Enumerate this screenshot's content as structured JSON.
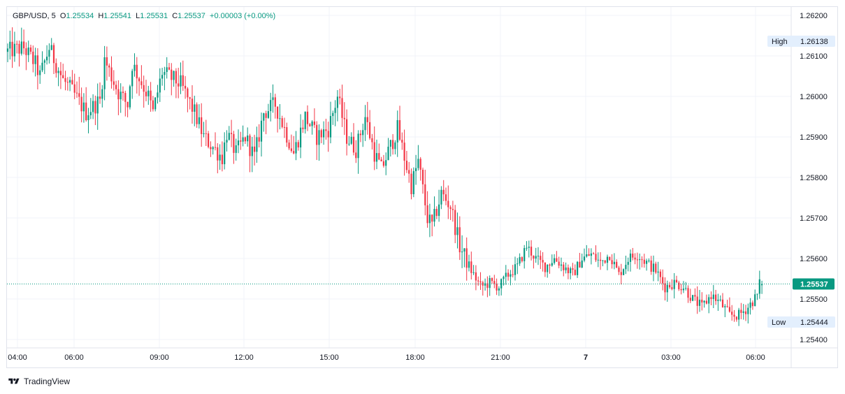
{
  "legend": {
    "symbol": "GBP/USD, 5",
    "open_label": "O",
    "open": "1.25534",
    "high_label": "H",
    "high": "1.25541",
    "low_label": "L",
    "low": "1.25531",
    "close_label": "C",
    "close": "1.25537",
    "change": "+0.00003 (+0.00%)"
  },
  "badges": {
    "high_label": "High",
    "high_value": "1.26138",
    "low_label": "Low",
    "low_value": "1.25444",
    "last_price": "1.25537"
  },
  "brand": "TradingView",
  "colors": {
    "up": "#089981",
    "down": "#f23645",
    "grid": "#f0f3fa",
    "axis_text": "#131722",
    "badge_bg": "#e3effd",
    "last_price_bg": "#089981"
  },
  "chart_data": {
    "type": "candlestick",
    "symbol": "GBP/USD",
    "timeframe": "5",
    "ylim": [
      1.2535,
      1.2623
    ],
    "y_ticks": [
      "1.26200",
      "1.26100",
      "1.26000",
      "1.25900",
      "1.25800",
      "1.25700",
      "1.25600",
      "1.25500",
      "1.25400"
    ],
    "x_ticks": [
      "04:00",
      "06:00",
      "09:00",
      "12:00",
      "15:00",
      "18:00",
      "21:00",
      "7",
      "03:00",
      "06:00"
    ],
    "session_high": 1.26138,
    "session_low": 1.25444,
    "last_price": 1.25537,
    "grid": true,
    "path_anchors": [
      [
        0,
        1.2611
      ],
      [
        8,
        1.2612
      ],
      [
        13,
        1.2608
      ],
      [
        15,
        1.2605
      ],
      [
        19,
        1.2612
      ],
      [
        25,
        1.2604
      ],
      [
        28,
        1.2602
      ],
      [
        35,
        1.2596
      ],
      [
        41,
        1.2599
      ],
      [
        43,
        1.2609
      ],
      [
        49,
        1.2601
      ],
      [
        53,
        1.2598
      ],
      [
        55,
        1.2608
      ],
      [
        62,
        1.26
      ],
      [
        64,
        1.2596
      ],
      [
        68,
        1.2606
      ],
      [
        76,
        1.2603
      ],
      [
        82,
        1.2596
      ],
      [
        86,
        1.259
      ],
      [
        94,
        1.2585
      ],
      [
        96,
        1.2591
      ],
      [
        100,
        1.2586
      ],
      [
        104,
        1.259
      ],
      [
        108,
        1.2585
      ],
      [
        112,
        1.2596
      ],
      [
        117,
        1.2598
      ],
      [
        125,
        1.2586
      ],
      [
        130,
        1.2595
      ],
      [
        135,
        1.259
      ],
      [
        140,
        1.2592
      ],
      [
        144,
        1.26
      ],
      [
        148,
        1.259
      ],
      [
        152,
        1.2587
      ],
      [
        156,
        1.2595
      ],
      [
        160,
        1.2586
      ],
      [
        163,
        1.2582
      ],
      [
        170,
        1.2592
      ],
      [
        173,
        1.2585
      ],
      [
        176,
        1.2578
      ],
      [
        179,
        1.2584
      ],
      [
        183,
        1.257
      ],
      [
        185,
        1.2568
      ],
      [
        189,
        1.2576
      ],
      [
        193,
        1.2573
      ],
      [
        197,
        1.2563
      ],
      [
        202,
        1.2557
      ],
      [
        206,
        1.2553
      ],
      [
        210,
        1.2554
      ],
      [
        214,
        1.2553
      ],
      [
        218,
        1.2556
      ],
      [
        222,
        1.2558
      ],
      [
        226,
        1.2563
      ],
      [
        230,
        1.256
      ],
      [
        234,
        1.2558
      ],
      [
        238,
        1.256
      ],
      [
        242,
        1.2558
      ],
      [
        246,
        1.2556
      ],
      [
        250,
        1.256
      ],
      [
        254,
        1.2561
      ],
      [
        258,
        1.2559
      ],
      [
        262,
        1.2561
      ],
      [
        266,
        1.2556
      ],
      [
        270,
        1.256
      ],
      [
        274,
        1.2561
      ],
      [
        278,
        1.2559
      ],
      [
        282,
        1.2557
      ],
      [
        286,
        1.2553
      ],
      [
        290,
        1.2554
      ],
      [
        294,
        1.2553
      ],
      [
        298,
        1.255
      ],
      [
        302,
        1.2548
      ],
      [
        306,
        1.2551
      ],
      [
        310,
        1.2549
      ],
      [
        314,
        1.2546
      ],
      [
        318,
        1.2546
      ],
      [
        322,
        1.2548
      ],
      [
        326,
        1.2551
      ],
      [
        327,
        1.25537
      ]
    ],
    "candle_count": 328
  }
}
